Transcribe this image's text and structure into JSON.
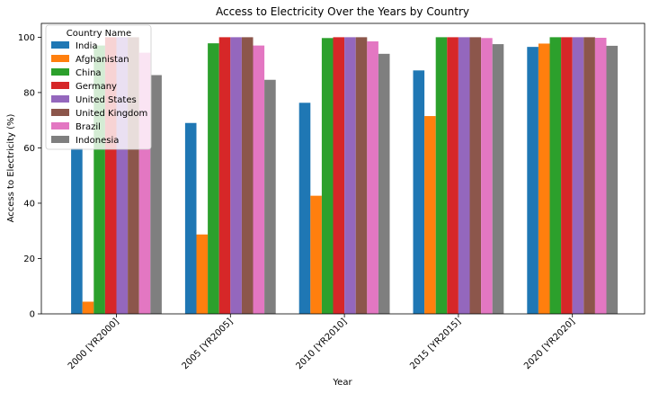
{
  "chart_data": {
    "type": "bar",
    "title": "Access to Electricity Over the Years by Country",
    "xlabel": "Year",
    "ylabel": "Access to Electricity (%)",
    "ylim": [
      0,
      105
    ],
    "yticks": [
      0,
      20,
      40,
      60,
      80,
      100
    ],
    "categories": [
      "2000 [YR2000]",
      "2005 [YR2005]",
      "2010 [YR2010]",
      "2015 [YR2015]",
      "2020 [YR2020]"
    ],
    "legend": {
      "title": "Country Name",
      "position": "top-left"
    },
    "grid": false,
    "series": [
      {
        "name": "India",
        "color": "#1f77b4",
        "values": [
          59.9,
          69.0,
          76.3,
          88.0,
          96.5
        ]
      },
      {
        "name": "Afghanistan",
        "color": "#ff7f0e",
        "values": [
          4.4,
          28.7,
          42.7,
          71.5,
          97.7
        ]
      },
      {
        "name": "China",
        "color": "#2ca02c",
        "values": [
          97.0,
          97.8,
          99.7,
          100.0,
          100.0
        ]
      },
      {
        "name": "Germany",
        "color": "#d62728",
        "values": [
          100.0,
          100.0,
          100.0,
          100.0,
          100.0
        ]
      },
      {
        "name": "United States",
        "color": "#9467bd",
        "values": [
          100.0,
          100.0,
          100.0,
          100.0,
          100.0
        ]
      },
      {
        "name": "United Kingdom",
        "color": "#8c564b",
        "values": [
          100.0,
          100.0,
          100.0,
          100.0,
          100.0
        ]
      },
      {
        "name": "Brazil",
        "color": "#e377c2",
        "values": [
          94.4,
          97.0,
          98.5,
          99.7,
          99.8
        ]
      },
      {
        "name": "Indonesia",
        "color": "#7f7f7f",
        "values": [
          86.3,
          84.6,
          94.0,
          97.5,
          96.9
        ]
      }
    ]
  }
}
